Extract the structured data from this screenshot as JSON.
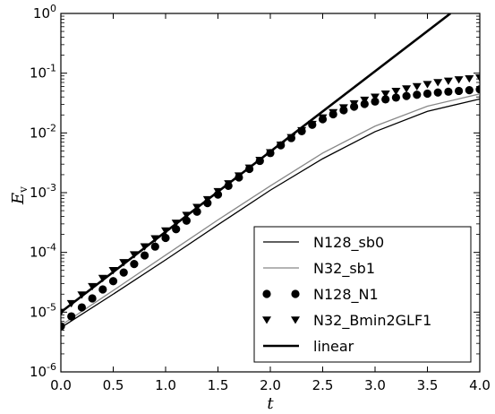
{
  "chart_data": {
    "type": "line",
    "xlabel": "t",
    "ylabel": "E",
    "ylabel_sub": "v",
    "xlim": [
      0,
      4
    ],
    "ylim_exp": [
      -6,
      0
    ],
    "yscale": "log",
    "grid": false,
    "legend_position": "lower-right",
    "x_ticks": [
      "0.0",
      "0.5",
      "1.0",
      "1.5",
      "2.0",
      "2.5",
      "3.0",
      "3.5",
      "4.0"
    ],
    "y_ticks": [
      {
        "base": "10",
        "exp": "-6"
      },
      {
        "base": "10",
        "exp": "-5"
      },
      {
        "base": "10",
        "exp": "-4"
      },
      {
        "base": "10",
        "exp": "-3"
      },
      {
        "base": "10",
        "exp": "-2"
      },
      {
        "base": "10",
        "exp": "-1"
      },
      {
        "base": "10",
        "exp": "0"
      }
    ],
    "series": [
      {
        "name": "N128_sb0",
        "style": "line-thin",
        "color": "#000000",
        "x": [
          0.0,
          0.5,
          1.0,
          1.5,
          2.0,
          2.5,
          3.0,
          3.5,
          4.0
        ],
        "y": [
          5.5e-06,
          2e-05,
          7.5e-05,
          0.00029,
          0.0011,
          0.0037,
          0.0105,
          0.023,
          0.037
        ]
      },
      {
        "name": "N32_sb1",
        "style": "line-gray",
        "color": "#888888",
        "x": [
          0.0,
          0.5,
          1.0,
          1.5,
          2.0,
          2.5,
          3.0,
          3.5,
          4.0
        ],
        "y": [
          6e-06,
          2.3e-05,
          9e-05,
          0.00035,
          0.0013,
          0.0046,
          0.013,
          0.028,
          0.045
        ]
      },
      {
        "name": "N128_N1",
        "style": "circle",
        "color": "#000000",
        "x": [
          0.0,
          0.1,
          0.2,
          0.3,
          0.4,
          0.5,
          0.6,
          0.7,
          0.8,
          0.9,
          1.0,
          1.1,
          1.2,
          1.3,
          1.4,
          1.5,
          1.6,
          1.7,
          1.8,
          1.9,
          2.0,
          2.1,
          2.2,
          2.3,
          2.4,
          2.5,
          2.6,
          2.7,
          2.8,
          2.9,
          3.0,
          3.1,
          3.2,
          3.3,
          3.4,
          3.5,
          3.6,
          3.7,
          3.8,
          3.9,
          4.0
        ],
        "y": [
          5.8e-06,
          8.5e-06,
          1.2e-05,
          1.7e-05,
          2.4e-05,
          3.3e-05,
          4.6e-05,
          6.4e-05,
          8.9e-05,
          0.000125,
          0.000175,
          0.000245,
          0.00034,
          0.00048,
          0.00067,
          0.00093,
          0.0013,
          0.0018,
          0.0025,
          0.0034,
          0.0046,
          0.0062,
          0.0082,
          0.0107,
          0.0137,
          0.017,
          0.0205,
          0.024,
          0.0275,
          0.0305,
          0.0335,
          0.0365,
          0.039,
          0.0415,
          0.0435,
          0.0455,
          0.0475,
          0.049,
          0.0505,
          0.052,
          0.0535
        ]
      },
      {
        "name": "N32_Bmin2GLF1",
        "style": "triangle-down",
        "color": "#000000",
        "x": [
          0.0,
          0.1,
          0.2,
          0.3,
          0.4,
          0.5,
          0.6,
          0.7,
          0.8,
          0.9,
          1.0,
          1.1,
          1.2,
          1.3,
          1.4,
          1.5,
          1.6,
          1.7,
          1.8,
          1.9,
          2.0,
          2.1,
          2.2,
          2.3,
          2.4,
          2.5,
          2.6,
          2.7,
          2.8,
          2.9,
          3.0,
          3.1,
          3.2,
          3.3,
          3.4,
          3.5,
          3.6,
          3.7,
          3.8,
          3.9,
          4.0
        ],
        "y": [
          1e-05,
          1.4e-05,
          1.95e-05,
          2.7e-05,
          3.7e-05,
          5e-05,
          6.8e-05,
          9.2e-05,
          0.000125,
          0.00017,
          0.00023,
          0.00031,
          0.00042,
          0.00057,
          0.00077,
          0.00105,
          0.00142,
          0.00192,
          0.0026,
          0.0035,
          0.0047,
          0.0063,
          0.0084,
          0.011,
          0.014,
          0.018,
          0.022,
          0.0265,
          0.031,
          0.0355,
          0.04,
          0.045,
          0.05,
          0.055,
          0.06,
          0.065,
          0.07,
          0.074,
          0.078,
          0.081,
          0.084
        ]
      },
      {
        "name": "linear",
        "style": "line-thick",
        "color": "#000000",
        "x": [
          0.0,
          3.72
        ],
        "y": [
          1e-05,
          1.0
        ]
      }
    ]
  }
}
